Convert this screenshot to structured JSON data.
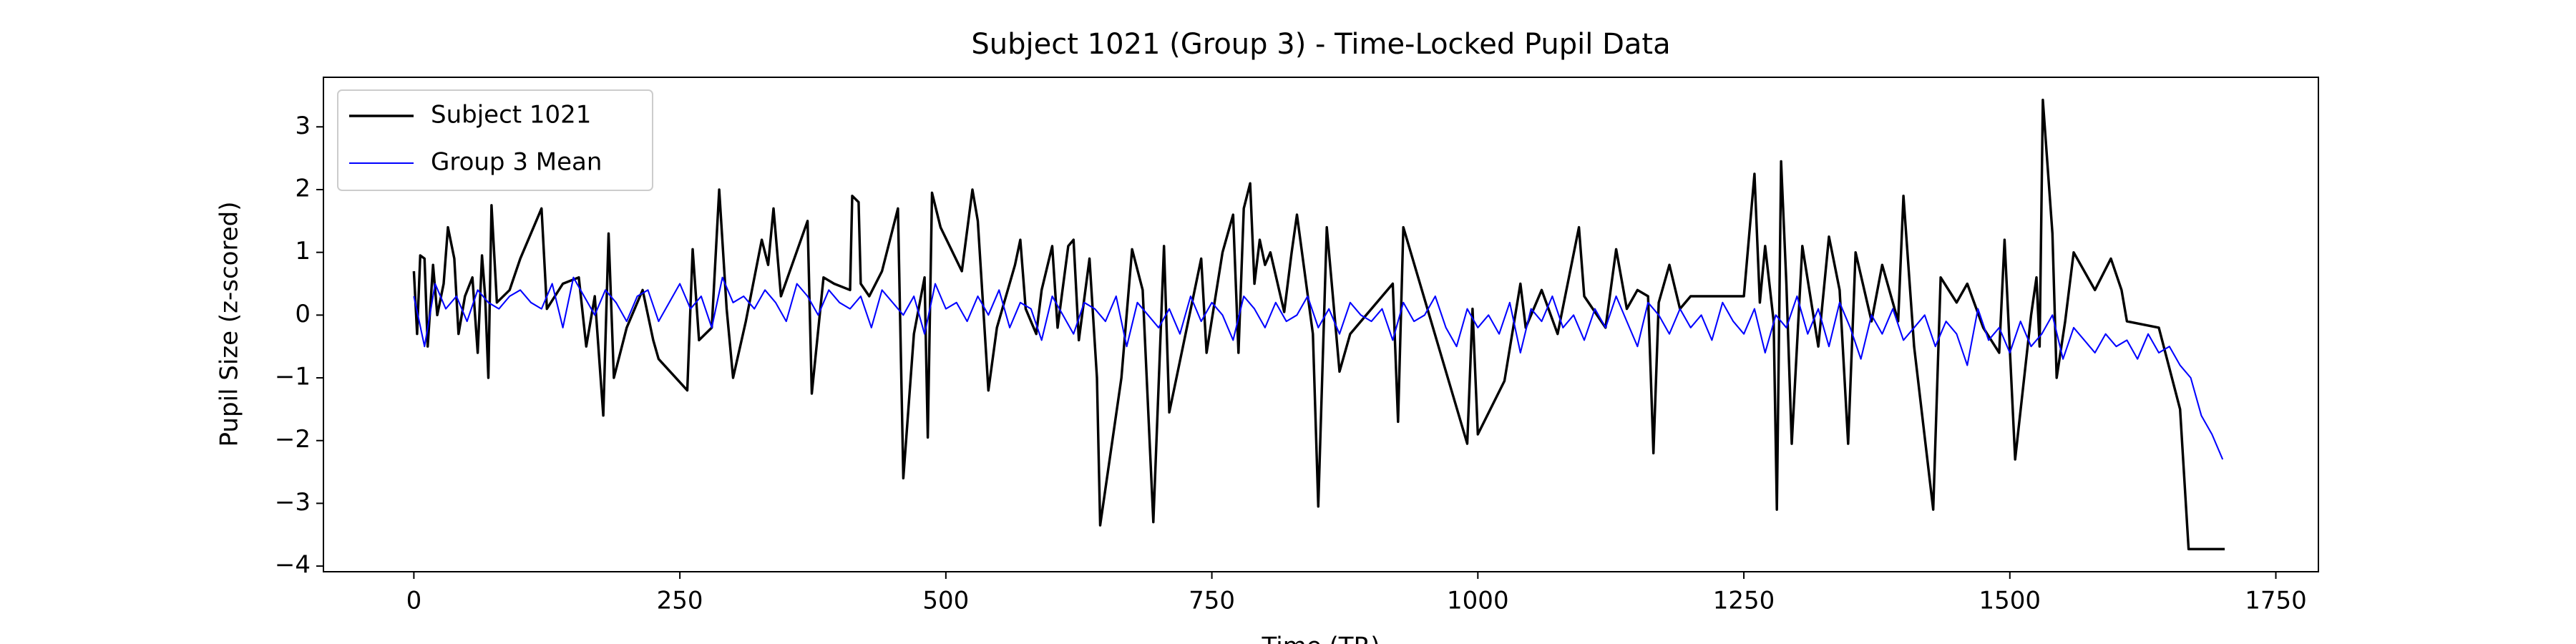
{
  "chart_data": {
    "type": "line",
    "title": "Subject 1021 (Group 3) - Time-Locked Pupil Data",
    "xlabel": "Time (TR)",
    "ylabel": "Pupil Size (z-scored)",
    "xlim": [
      -85,
      1790
    ],
    "ylim": [
      -4.09,
      3.79
    ],
    "xticks": [
      0,
      250,
      500,
      750,
      1000,
      1250,
      1500,
      1750
    ],
    "yticks": [
      {
        "value": -4,
        "label": "−4"
      },
      {
        "value": -3,
        "label": "−3"
      },
      {
        "value": -2,
        "label": "−2"
      },
      {
        "value": -1,
        "label": "−1"
      },
      0,
      1,
      2,
      3
    ],
    "grid": false,
    "legend": "upper left",
    "series": [
      {
        "name": "Subject 1021",
        "color": "#000000",
        "width": 3,
        "x": [
          0,
          3,
          6,
          10,
          13,
          18,
          22,
          28,
          32,
          38,
          42,
          48,
          55,
          60,
          64,
          67,
          70,
          73,
          78,
          90,
          100,
          120,
          125,
          140,
          155,
          162,
          170,
          178,
          183,
          188,
          200,
          215,
          225,
          230,
          257,
          262,
          268,
          280,
          287,
          294,
          300,
          312,
          327,
          333,
          338,
          345,
          370,
          374,
          385,
          395,
          410,
          412,
          418,
          420,
          428,
          440,
          455,
          460,
          470,
          480,
          483,
          487,
          495,
          515,
          525,
          530,
          540,
          548,
          565,
          570,
          575,
          585,
          590,
          600,
          605,
          615,
          620,
          625,
          635,
          642,
          645,
          665,
          675,
          685,
          695,
          705,
          710,
          740,
          745,
          760,
          770,
          775,
          780,
          786,
          790,
          795,
          800,
          805,
          818,
          825,
          830,
          845,
          850,
          858,
          870,
          880,
          920,
          925,
          930,
          990,
          995,
          1000,
          1025,
          1040,
          1045,
          1060,
          1075,
          1095,
          1100,
          1120,
          1130,
          1140,
          1150,
          1160,
          1165,
          1170,
          1180,
          1190,
          1200,
          1250,
          1260,
          1265,
          1270,
          1278,
          1281,
          1285,
          1290,
          1295,
          1305,
          1320,
          1330,
          1340,
          1348,
          1355,
          1370,
          1380,
          1395,
          1400,
          1410,
          1428,
          1435,
          1450,
          1460,
          1475,
          1490,
          1495,
          1505,
          1520,
          1525,
          1528,
          1531,
          1540,
          1544,
          1552,
          1560,
          1580,
          1595,
          1605,
          1610,
          1640,
          1660,
          1668,
          1672,
          1702
        ],
        "values": [
          0.7,
          -0.3,
          0.95,
          0.9,
          -0.5,
          0.8,
          0,
          0.5,
          1.4,
          0.9,
          -0.3,
          0.3,
          0.6,
          -0.6,
          0.95,
          0.3,
          -1.0,
          1.75,
          0.2,
          0.4,
          0.9,
          1.7,
          0.1,
          0.5,
          0.6,
          -0.5,
          0.3,
          -1.6,
          1.3,
          -1.0,
          -0.2,
          0.4,
          -0.4,
          -0.7,
          -1.2,
          1.05,
          -0.4,
          -0.2,
          2.0,
          0.1,
          -1.0,
          -0.1,
          1.2,
          0.8,
          1.7,
          0.3,
          1.5,
          -1.25,
          0.6,
          0.5,
          0.4,
          1.9,
          1.8,
          0.5,
          0.3,
          0.7,
          1.7,
          -2.6,
          -0.3,
          0.6,
          -1.95,
          1.95,
          1.4,
          0.7,
          2.0,
          1.5,
          -1.2,
          -0.2,
          0.8,
          1.2,
          0.1,
          -0.3,
          0.4,
          1.1,
          -0.2,
          1.1,
          1.2,
          -0.4,
          0.9,
          -1.0,
          -3.35,
          -1.0,
          1.05,
          0.4,
          -3.3,
          1.1,
          -1.55,
          0.9,
          -0.6,
          1.0,
          1.6,
          -0.6,
          1.7,
          2.1,
          0.5,
          1.2,
          0.8,
          1.0,
          0.05,
          1.0,
          1.6,
          -0.3,
          -3.05,
          1.4,
          -0.9,
          -0.3,
          0.5,
          -1.7,
          1.4,
          -2.05,
          0.1,
          -1.9,
          -1.05,
          0.5,
          -0.2,
          0.4,
          -0.3,
          1.4,
          0.3,
          -0.2,
          1.05,
          0.1,
          0.4,
          0.3,
          -2.2,
          0.2,
          0.8,
          0.1,
          0.3,
          0.3,
          2.25,
          0.2,
          1.1,
          -0.1,
          -3.1,
          2.45,
          0.5,
          -2.05,
          1.1,
          -0.5,
          1.25,
          0.4,
          -2.05,
          1.0,
          -0.1,
          0.8,
          -0.1,
          1.9,
          -0.5,
          -3.1,
          0.6,
          0.2,
          0.5,
          -0.2,
          -0.6,
          1.2,
          -2.3,
          0,
          0.6,
          -0.5,
          3.43,
          1.3,
          -1.0,
          -0.1,
          1.0,
          0.4,
          0.9,
          0.4,
          -0.1,
          -0.2,
          -1.5,
          -3.73,
          -3.73,
          -3.73
        ]
      },
      {
        "name": "Group 3 Mean",
        "color": "#0000ff",
        "width": 1.8,
        "x": [
          0,
          10,
          20,
          30,
          40,
          50,
          60,
          70,
          80,
          90,
          100,
          110,
          120,
          130,
          140,
          150,
          160,
          170,
          180,
          190,
          200,
          210,
          220,
          230,
          240,
          250,
          260,
          270,
          280,
          290,
          300,
          310,
          320,
          330,
          340,
          350,
          360,
          370,
          380,
          390,
          400,
          410,
          420,
          430,
          440,
          450,
          460,
          470,
          480,
          490,
          500,
          510,
          520,
          530,
          540,
          550,
          560,
          570,
          580,
          590,
          600,
          610,
          620,
          630,
          640,
          650,
          660,
          670,
          680,
          690,
          700,
          710,
          720,
          730,
          740,
          750,
          760,
          770,
          780,
          790,
          800,
          810,
          820,
          830,
          840,
          850,
          860,
          870,
          880,
          890,
          900,
          910,
          920,
          930,
          940,
          950,
          960,
          970,
          980,
          990,
          1000,
          1010,
          1020,
          1030,
          1040,
          1050,
          1060,
          1070,
          1080,
          1090,
          1100,
          1110,
          1120,
          1130,
          1140,
          1150,
          1160,
          1170,
          1180,
          1190,
          1200,
          1210,
          1220,
          1230,
          1240,
          1250,
          1260,
          1270,
          1280,
          1290,
          1300,
          1310,
          1320,
          1330,
          1340,
          1350,
          1360,
          1370,
          1380,
          1390,
          1400,
          1410,
          1420,
          1430,
          1440,
          1450,
          1460,
          1470,
          1480,
          1490,
          1500,
          1510,
          1520,
          1530,
          1540,
          1550,
          1560,
          1570,
          1580,
          1590,
          1600,
          1610,
          1620,
          1630,
          1640,
          1650,
          1660,
          1670,
          1680,
          1690,
          1700
        ],
        "values": [
          0.3,
          -0.5,
          0.5,
          0.1,
          0.3,
          -0.1,
          0.4,
          0.2,
          0.1,
          0.3,
          0.4,
          0.2,
          0.1,
          0.5,
          -0.2,
          0.6,
          0.3,
          0.0,
          0.4,
          0.2,
          -0.1,
          0.3,
          0.4,
          -0.1,
          0.2,
          0.5,
          0.1,
          0.3,
          -0.2,
          0.6,
          0.2,
          0.3,
          0.1,
          0.4,
          0.2,
          -0.1,
          0.5,
          0.3,
          0.0,
          0.4,
          0.2,
          0.1,
          0.3,
          -0.2,
          0.4,
          0.2,
          0.0,
          0.3,
          -0.3,
          0.5,
          0.1,
          0.2,
          -0.1,
          0.3,
          0.0,
          0.4,
          -0.2,
          0.2,
          0.1,
          -0.4,
          0.3,
          0.0,
          -0.3,
          0.2,
          0.1,
          -0.1,
          0.3,
          -0.5,
          0.2,
          0.0,
          -0.2,
          0.1,
          -0.3,
          0.3,
          -0.1,
          0.2,
          0.0,
          -0.4,
          0.3,
          0.1,
          -0.2,
          0.2,
          -0.1,
          0.0,
          0.3,
          -0.2,
          0.1,
          -0.3,
          0.2,
          0.0,
          -0.1,
          0.1,
          -0.4,
          0.2,
          -0.1,
          0.0,
          0.3,
          -0.2,
          -0.5,
          0.1,
          -0.2,
          0.0,
          -0.3,
          0.2,
          -0.6,
          0.1,
          -0.1,
          0.3,
          -0.2,
          0.0,
          -0.4,
          0.1,
          -0.2,
          0.3,
          -0.1,
          -0.5,
          0.2,
          0.0,
          -0.3,
          0.1,
          -0.2,
          0.0,
          -0.4,
          0.2,
          -0.1,
          -0.3,
          0.1,
          -0.6,
          0.0,
          -0.2,
          0.3,
          -0.3,
          0.1,
          -0.5,
          0.2,
          -0.2,
          -0.7,
          0.0,
          -0.3,
          0.1,
          -0.4,
          -0.2,
          0.0,
          -0.5,
          -0.1,
          -0.3,
          -0.8,
          0.1,
          -0.4,
          -0.2,
          -0.6,
          -0.1,
          -0.5,
          -0.3,
          0.0,
          -0.7,
          -0.2,
          -0.4,
          -0.6,
          -0.3,
          -0.5,
          -0.4,
          -0.7,
          -0.3,
          -0.6,
          -0.5,
          -0.8,
          -1.0,
          -1.6,
          -1.9,
          -2.3
        ]
      }
    ]
  }
}
